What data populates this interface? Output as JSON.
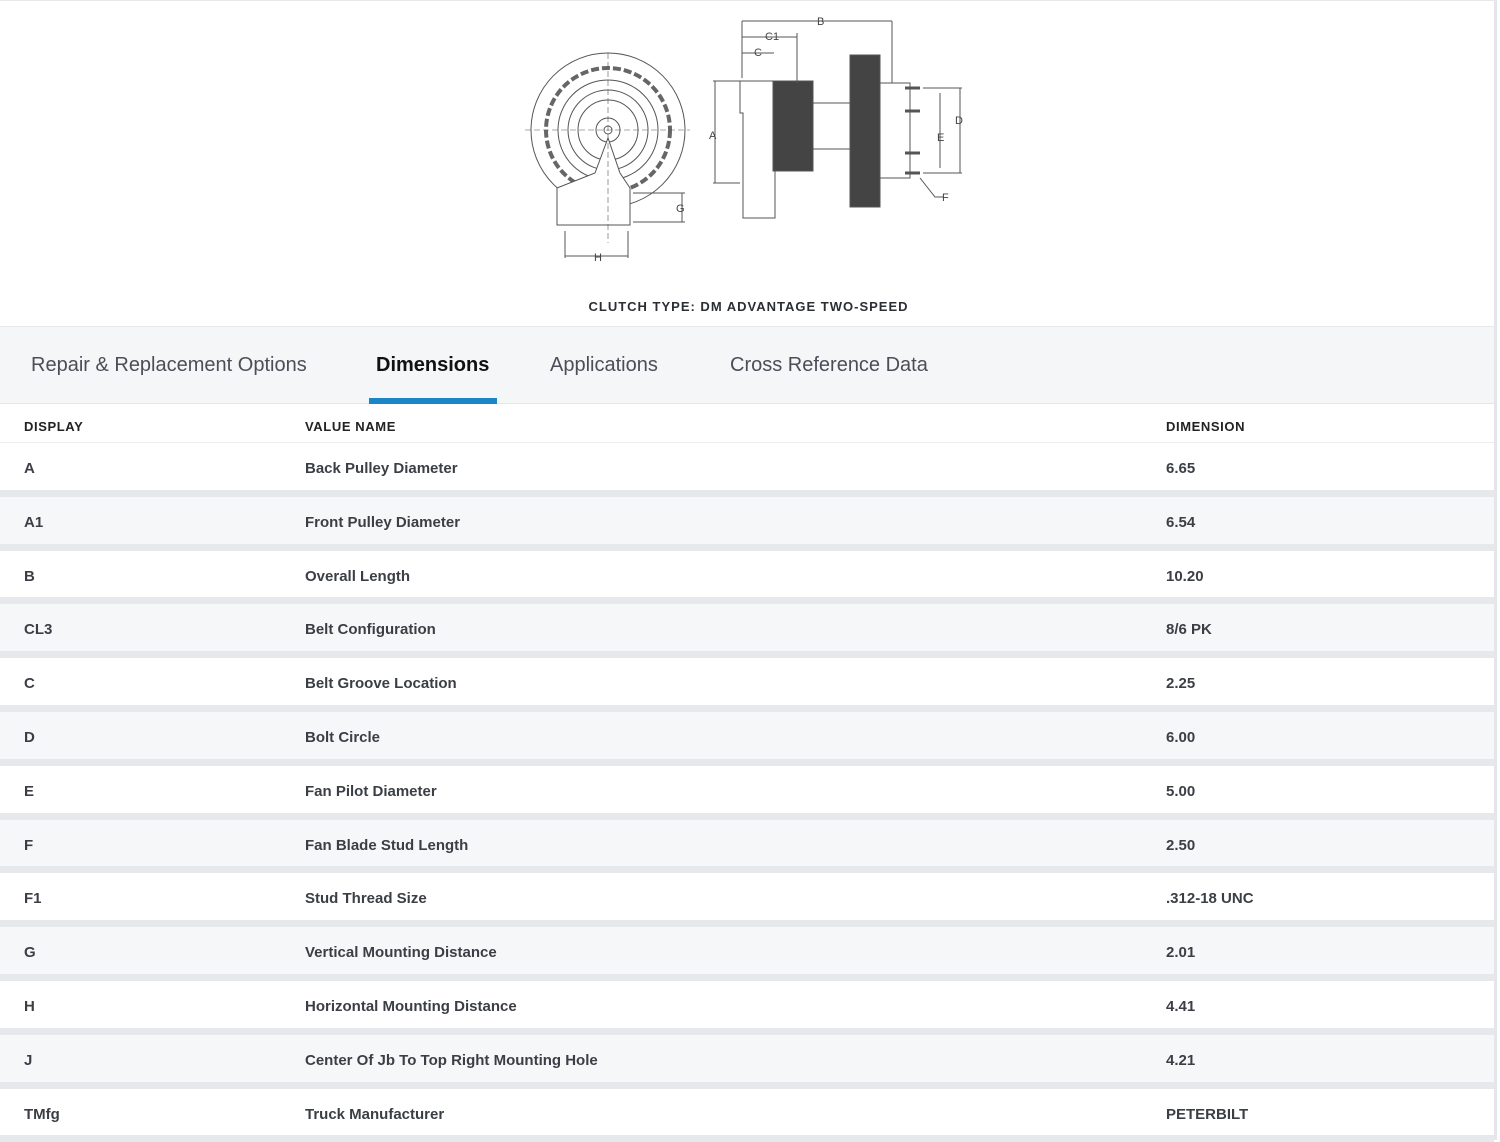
{
  "diagram": {
    "labels": {
      "A": "A",
      "B": "B",
      "C": "C",
      "C1": "C1",
      "D": "D",
      "E": "E",
      "F": "F",
      "G": "G",
      "H": "H"
    }
  },
  "caption": "CLUTCH TYPE: DM ADVANTAGE TWO-SPEED",
  "tabs": [
    {
      "label": "Repair & Replacement Options",
      "active": false
    },
    {
      "label": "Dimensions",
      "active": true
    },
    {
      "label": "Applications",
      "active": false
    },
    {
      "label": "Cross Reference Data",
      "active": false
    }
  ],
  "accent_color": "#1a86c8",
  "table": {
    "headers": [
      "DISPLAY",
      "VALUE NAME",
      "DIMENSION"
    ],
    "rows": [
      [
        "A",
        "Back Pulley Diameter",
        "6.65"
      ],
      [
        "A1",
        "Front Pulley Diameter",
        "6.54"
      ],
      [
        "B",
        "Overall Length",
        "10.20"
      ],
      [
        "CL3",
        "Belt Configuration",
        "8/6 PK"
      ],
      [
        "C",
        "Belt Groove Location",
        "2.25"
      ],
      [
        "D",
        "Bolt Circle",
        "6.00"
      ],
      [
        "E",
        "Fan Pilot Diameter",
        "5.00"
      ],
      [
        "F",
        "Fan Blade Stud Length",
        "2.50"
      ],
      [
        "F1",
        "Stud Thread Size",
        ".312-18 UNC"
      ],
      [
        "G",
        "Vertical Mounting Distance",
        "2.01"
      ],
      [
        "H",
        "Horizontal Mounting Distance",
        "4.41"
      ],
      [
        "J",
        "Center Of Jb To Top Right Mounting Hole",
        "4.21"
      ],
      [
        "TMfg",
        "Truck Manufacturer",
        "PETERBILT"
      ]
    ]
  }
}
